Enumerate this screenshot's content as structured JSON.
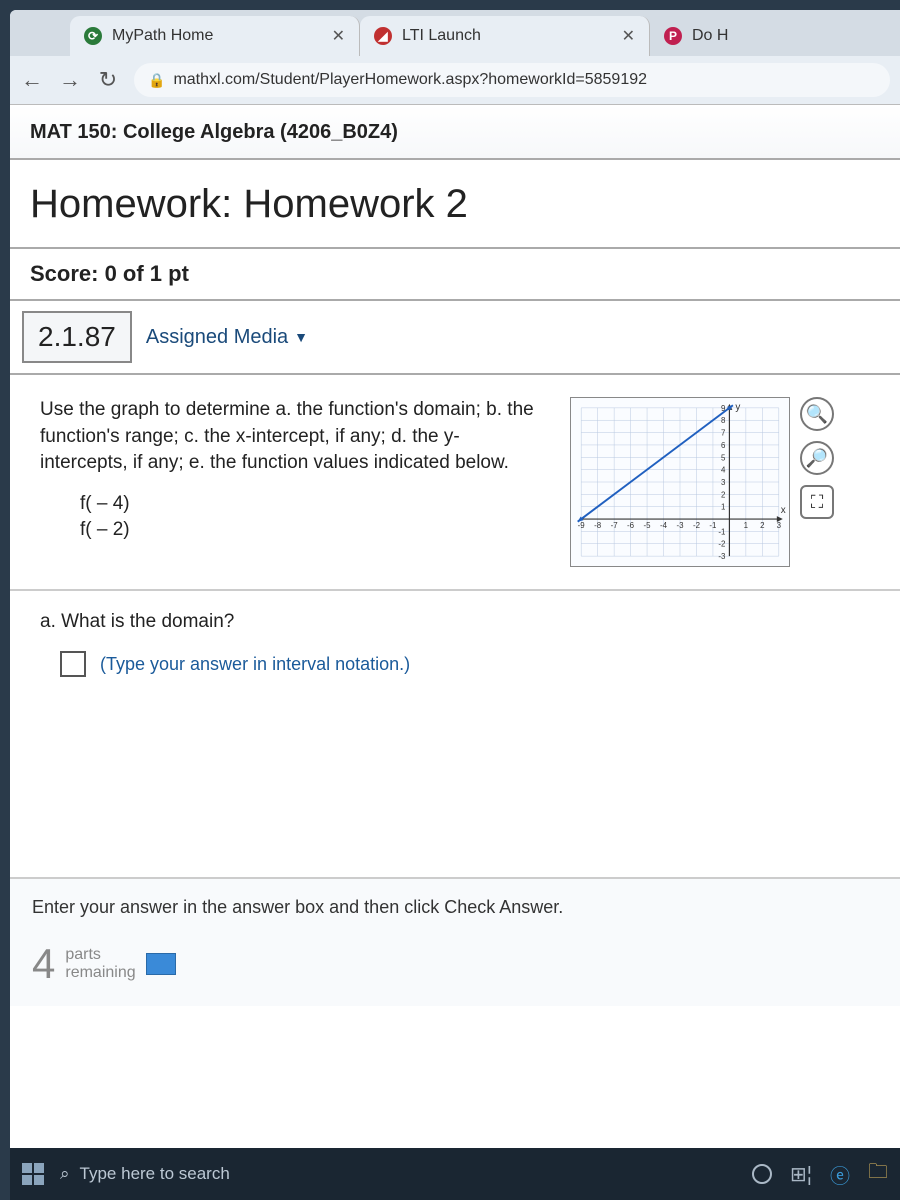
{
  "browser": {
    "tabs": [
      {
        "title": "MyPath Home",
        "favicon_bg": "#2a7a3a",
        "favicon_glyph": "⟳"
      },
      {
        "title": "LTI Launch",
        "favicon_bg": "#c03030",
        "favicon_glyph": "◢"
      },
      {
        "title": "Do H",
        "favicon_bg": "#c02050",
        "favicon_glyph": "P"
      }
    ],
    "url": "mathxl.com/Student/PlayerHomework.aspx?homeworkId=5859192"
  },
  "course": {
    "header": "MAT 150: College Algebra (4206_B0Z4)"
  },
  "homework": {
    "title": "Homework: Homework 2",
    "score_label": "Score: 0 of 1 pt",
    "question_number": "2.1.87",
    "assigned_media_label": "Assigned Media"
  },
  "problem": {
    "prompt": "Use the graph to determine a. the function's domain; b. the function's range; c. the x-intercept, if any; d. the y-intercepts, if any; e. the function values indicated below.",
    "fn1": "f( – 4)",
    "fn2": "f( – 2)",
    "sub_question": "a. What is the domain?",
    "hint": "(Type your answer in interval notation.)"
  },
  "graph": {
    "type": "line",
    "x_axis_label": "x",
    "y_axis_label": "y",
    "xlim": [
      -9,
      3
    ],
    "ylim": [
      -3,
      9
    ],
    "x_ticks": [
      -9,
      -8,
      -7,
      -6,
      -5,
      -4,
      -3,
      -2,
      -1,
      1,
      2,
      3
    ],
    "y_ticks": [
      -3,
      -2,
      -1,
      1,
      2,
      3,
      4,
      5,
      6,
      7,
      8,
      9
    ],
    "grid_color": "#b8c8e0",
    "axis_color": "#333333",
    "line_color": "#2060c0",
    "line_width": 2,
    "ray_start": [
      -9,
      0
    ],
    "ray_through": [
      0,
      9
    ],
    "left_arrow": true,
    "right_arrow": true,
    "background": "#fafcff",
    "tick_fontsize": 8
  },
  "footer": {
    "instruction": "Enter your answer in the answer box and then click Check Answer.",
    "parts_number": "4",
    "parts_label_top": "parts",
    "parts_label_bottom": "remaining"
  },
  "taskbar": {
    "search_placeholder": "Type here to search"
  },
  "colors": {
    "page_bg": "#ffffff",
    "link": "#1a5a9a"
  }
}
